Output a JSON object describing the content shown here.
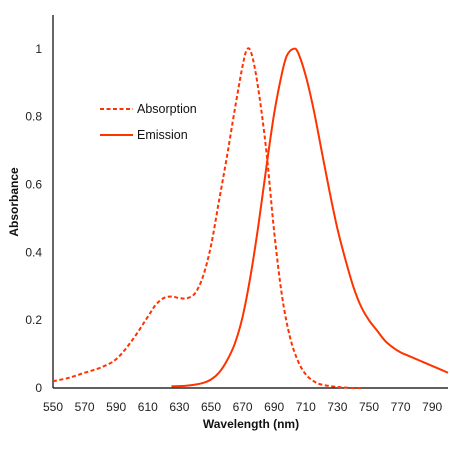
{
  "chart_data": {
    "type": "line",
    "title": "",
    "xlabel": "Wavelength (nm)",
    "ylabel": "Absorbance",
    "xlim": [
      550,
      800
    ],
    "ylim": [
      0,
      1.1
    ],
    "x_ticks": [
      "550",
      "570",
      "590",
      "610",
      "630",
      "650",
      "670",
      "690",
      "710",
      "730",
      "750",
      "770",
      "790"
    ],
    "y_ticks": [
      "0",
      "0.2",
      "0.4",
      "0.6",
      "0.8",
      "1"
    ],
    "grid": false,
    "legend_position": "upper-left",
    "colors": {
      "series": "#FF3300",
      "axis": "#000000"
    },
    "series": [
      {
        "name": "Absorption",
        "style": "dashed",
        "points": [
          [
            550,
            0.02
          ],
          [
            560,
            0.03
          ],
          [
            570,
            0.045
          ],
          [
            580,
            0.06
          ],
          [
            590,
            0.085
          ],
          [
            600,
            0.14
          ],
          [
            610,
            0.21
          ],
          [
            615,
            0.245
          ],
          [
            620,
            0.265
          ],
          [
            625,
            0.27
          ],
          [
            630,
            0.265
          ],
          [
            635,
            0.265
          ],
          [
            640,
            0.28
          ],
          [
            645,
            0.33
          ],
          [
            650,
            0.42
          ],
          [
            655,
            0.55
          ],
          [
            660,
            0.68
          ],
          [
            665,
            0.82
          ],
          [
            670,
            0.95
          ],
          [
            673,
            1.0
          ],
          [
            676,
            0.98
          ],
          [
            680,
            0.88
          ],
          [
            685,
            0.7
          ],
          [
            690,
            0.46
          ],
          [
            695,
            0.27
          ],
          [
            700,
            0.15
          ],
          [
            705,
            0.08
          ],
          [
            710,
            0.04
          ],
          [
            715,
            0.02
          ],
          [
            720,
            0.01
          ],
          [
            730,
            0.003
          ],
          [
            740,
            0.0
          ],
          [
            745,
            0.0
          ]
        ]
      },
      {
        "name": "Emission",
        "style": "solid",
        "points": [
          [
            625,
            0.005
          ],
          [
            635,
            0.007
          ],
          [
            645,
            0.015
          ],
          [
            650,
            0.025
          ],
          [
            655,
            0.045
          ],
          [
            660,
            0.08
          ],
          [
            665,
            0.13
          ],
          [
            670,
            0.21
          ],
          [
            675,
            0.33
          ],
          [
            680,
            0.48
          ],
          [
            685,
            0.65
          ],
          [
            690,
            0.81
          ],
          [
            695,
            0.93
          ],
          [
            698,
            0.98
          ],
          [
            702,
            1.0
          ],
          [
            705,
            0.99
          ],
          [
            710,
            0.92
          ],
          [
            715,
            0.82
          ],
          [
            720,
            0.7
          ],
          [
            725,
            0.58
          ],
          [
            730,
            0.47
          ],
          [
            735,
            0.38
          ],
          [
            740,
            0.3
          ],
          [
            745,
            0.24
          ],
          [
            750,
            0.2
          ],
          [
            755,
            0.17
          ],
          [
            760,
            0.14
          ],
          [
            765,
            0.12
          ],
          [
            770,
            0.105
          ],
          [
            775,
            0.095
          ],
          [
            780,
            0.085
          ],
          [
            785,
            0.075
          ],
          [
            790,
            0.065
          ],
          [
            795,
            0.055
          ],
          [
            800,
            0.045
          ]
        ]
      }
    ]
  }
}
